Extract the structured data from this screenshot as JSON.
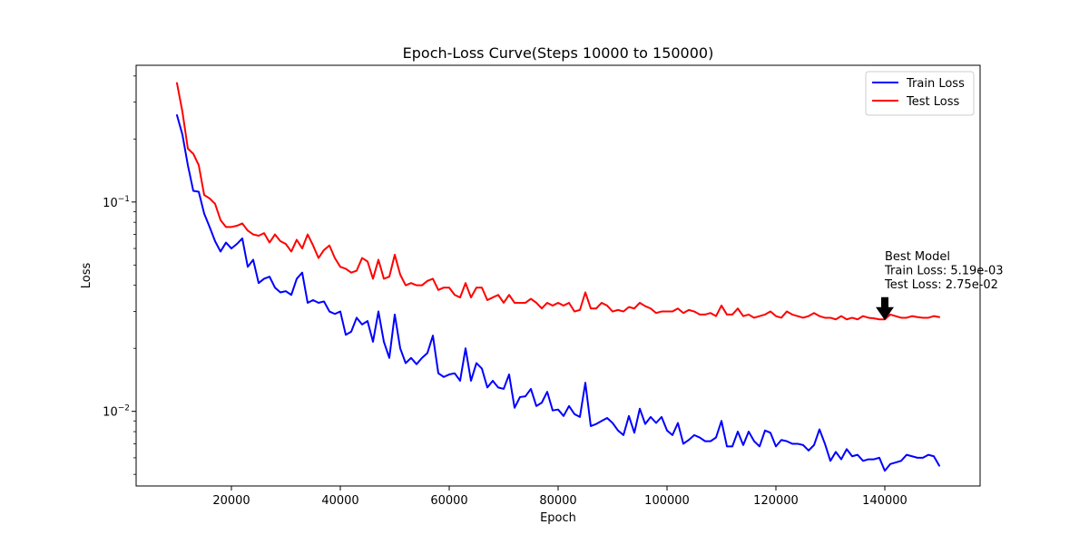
{
  "chart_data": {
    "type": "line",
    "title": "Epoch-Loss Curve(Steps 10000 to 150000)",
    "xlabel": "Epoch",
    "ylabel": "Loss",
    "xlim": [
      2500,
      157500
    ],
    "ylim": [
      0.0044,
      0.45
    ],
    "yscale": "log",
    "grid": false,
    "legend_position": "top-right",
    "x_ticks": [
      {
        "value": 20000,
        "label": "20000"
      },
      {
        "value": 40000,
        "label": "40000"
      },
      {
        "value": 60000,
        "label": "60000"
      },
      {
        "value": 80000,
        "label": "80000"
      },
      {
        "value": 100000,
        "label": "100000"
      },
      {
        "value": 120000,
        "label": "120000"
      },
      {
        "value": 140000,
        "label": "140000"
      }
    ],
    "y_major_ticks": [
      {
        "value": 0.01,
        "label": "10",
        "exp": "−2"
      },
      {
        "value": 0.1,
        "label": "10",
        "exp": "−1"
      }
    ],
    "y_minor_ticks": [
      0.005,
      0.006,
      0.007,
      0.008,
      0.009,
      0.02,
      0.03,
      0.04,
      0.05,
      0.06,
      0.07,
      0.08,
      0.09,
      0.2,
      0.3,
      0.4
    ],
    "x": [
      10000,
      11000,
      12000,
      13000,
      14000,
      15000,
      16000,
      17000,
      18000,
      19000,
      20000,
      21000,
      22000,
      23000,
      24000,
      25000,
      26000,
      27000,
      28000,
      29000,
      30000,
      31000,
      32000,
      33000,
      34000,
      35000,
      36000,
      37000,
      38000,
      39000,
      40000,
      41000,
      42000,
      43000,
      44000,
      45000,
      46000,
      47000,
      48000,
      49000,
      50000,
      51000,
      52000,
      53000,
      54000,
      55000,
      56000,
      57000,
      58000,
      59000,
      60000,
      61000,
      62000,
      63000,
      64000,
      65000,
      66000,
      67000,
      68000,
      69000,
      70000,
      71000,
      72000,
      73000,
      74000,
      75000,
      76000,
      77000,
      78000,
      79000,
      80000,
      81000,
      82000,
      83000,
      84000,
      85000,
      86000,
      87000,
      88000,
      89000,
      90000,
      91000,
      92000,
      93000,
      94000,
      95000,
      96000,
      97000,
      98000,
      99000,
      100000,
      101000,
      102000,
      103000,
      104000,
      105000,
      106000,
      107000,
      108000,
      109000,
      110000,
      111000,
      112000,
      113000,
      114000,
      115000,
      116000,
      117000,
      118000,
      119000,
      120000,
      121000,
      122000,
      123000,
      124000,
      125000,
      126000,
      127000,
      128000,
      129000,
      130000,
      131000,
      132000,
      133000,
      134000,
      135000,
      136000,
      137000,
      138000,
      139000,
      140000,
      141000,
      142000,
      143000,
      144000,
      145000,
      146000,
      147000,
      148000,
      149000,
      150000
    ],
    "series": [
      {
        "name": "Train Loss",
        "color": "#0000ff",
        "values": [
          0.26,
          0.21,
          0.15,
          0.113,
          0.112,
          0.088,
          0.076,
          0.065,
          0.058,
          0.064,
          0.06,
          0.063,
          0.067,
          0.049,
          0.053,
          0.041,
          0.043,
          0.044,
          0.039,
          0.037,
          0.0375,
          0.036,
          0.043,
          0.046,
          0.033,
          0.034,
          0.033,
          0.0335,
          0.03,
          0.0292,
          0.03,
          0.0232,
          0.024,
          0.028,
          0.026,
          0.027,
          0.0215,
          0.03,
          0.0215,
          0.018,
          0.029,
          0.02,
          0.017,
          0.018,
          0.0168,
          0.018,
          0.019,
          0.023,
          0.0152,
          0.0146,
          0.015,
          0.0152,
          0.014,
          0.02,
          0.014,
          0.017,
          0.016,
          0.013,
          0.014,
          0.013,
          0.0128,
          0.015,
          0.0104,
          0.0117,
          0.0118,
          0.0128,
          0.0106,
          0.011,
          0.0124,
          0.0101,
          0.0102,
          0.0095,
          0.0106,
          0.0097,
          0.0094,
          0.0137,
          0.0085,
          0.0087,
          0.009,
          0.0093,
          0.0088,
          0.0081,
          0.0077,
          0.0095,
          0.0079,
          0.0103,
          0.0087,
          0.0094,
          0.0088,
          0.0094,
          0.0081,
          0.0077,
          0.0088,
          0.007,
          0.0073,
          0.0077,
          0.0075,
          0.0072,
          0.0072,
          0.0075,
          0.009,
          0.0068,
          0.0068,
          0.008,
          0.0069,
          0.008,
          0.0072,
          0.0068,
          0.0081,
          0.0079,
          0.0068,
          0.0073,
          0.0072,
          0.007,
          0.007,
          0.0069,
          0.0065,
          0.0069,
          0.0082,
          0.007,
          0.0058,
          0.0064,
          0.0059,
          0.0066,
          0.0061,
          0.0062,
          0.0058,
          0.0059,
          0.0059,
          0.006,
          0.0052,
          0.0056,
          0.0057,
          0.0058,
          0.0062,
          0.0061,
          0.006,
          0.006,
          0.0062,
          0.0061,
          0.0055
        ]
      },
      {
        "name": "Test Loss",
        "color": "#ff0000",
        "values": [
          0.37,
          0.27,
          0.18,
          0.17,
          0.15,
          0.108,
          0.104,
          0.098,
          0.082,
          0.076,
          0.076,
          0.077,
          0.079,
          0.073,
          0.07,
          0.069,
          0.071,
          0.064,
          0.07,
          0.065,
          0.063,
          0.058,
          0.066,
          0.06,
          0.07,
          0.062,
          0.054,
          0.059,
          0.062,
          0.054,
          0.049,
          0.048,
          0.046,
          0.047,
          0.054,
          0.052,
          0.043,
          0.053,
          0.043,
          0.044,
          0.056,
          0.045,
          0.04,
          0.041,
          0.04,
          0.04,
          0.042,
          0.043,
          0.038,
          0.039,
          0.039,
          0.036,
          0.035,
          0.041,
          0.035,
          0.039,
          0.039,
          0.034,
          0.035,
          0.036,
          0.033,
          0.036,
          0.033,
          0.033,
          0.033,
          0.0345,
          0.033,
          0.031,
          0.033,
          0.032,
          0.033,
          0.032,
          0.033,
          0.03,
          0.0305,
          0.037,
          0.031,
          0.031,
          0.033,
          0.032,
          0.03,
          0.0305,
          0.03,
          0.0315,
          0.031,
          0.033,
          0.0318,
          0.031,
          0.0295,
          0.03,
          0.03,
          0.03,
          0.031,
          0.0295,
          0.0305,
          0.03,
          0.029,
          0.029,
          0.0295,
          0.0285,
          0.032,
          0.029,
          0.029,
          0.031,
          0.0285,
          0.029,
          0.028,
          0.0285,
          0.029,
          0.03,
          0.0285,
          0.028,
          0.03,
          0.029,
          0.0285,
          0.028,
          0.0285,
          0.0295,
          0.0285,
          0.028,
          0.028,
          0.0275,
          0.0285,
          0.0275,
          0.028,
          0.0275,
          0.0285,
          0.028,
          0.0278,
          0.0275,
          0.0275,
          0.029,
          0.0285,
          0.028,
          0.028,
          0.0285,
          0.0282,
          0.028,
          0.028,
          0.0285,
          0.0282
        ]
      }
    ],
    "annotation": {
      "x": 140000,
      "y": 0.0275,
      "lines": [
        "Best Model",
        "Train Loss: 5.19e-03",
        "Test Loss: 2.75e-02"
      ]
    }
  }
}
